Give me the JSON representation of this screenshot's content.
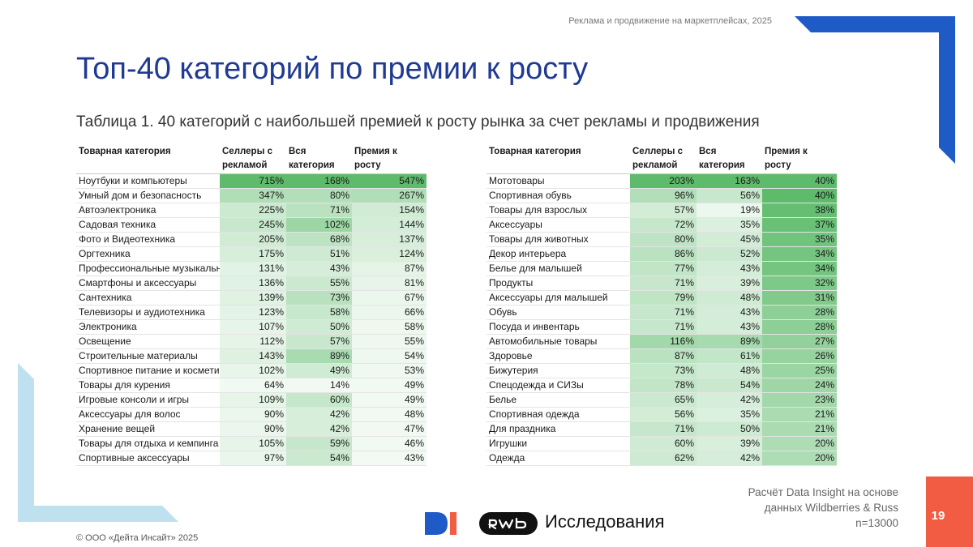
{
  "header_note": "Реклама и продвижение на маркетплейсах, 2025",
  "title": "Топ-40 категорий по премии к росту",
  "caption": "Таблица 1. 40 категорий с наибольшей премией к росту рынка за счет рекламы и продвижения",
  "columns": [
    "Товарная категория",
    "Селлеры с рекламой",
    "Вся категория",
    "Премия к росту"
  ],
  "table_left": [
    [
      "Ноутбуки и компьютеры",
      "715%",
      "168%",
      "547%"
    ],
    [
      "Умный дом и безопасность",
      "347%",
      "80%",
      "267%"
    ],
    [
      "Автоэлектроника",
      "225%",
      "71%",
      "154%"
    ],
    [
      "Садовая техника",
      "245%",
      "102%",
      "144%"
    ],
    [
      "Фото и Видеотехника",
      "205%",
      "68%",
      "137%"
    ],
    [
      "Оргтехника",
      "175%",
      "51%",
      "124%"
    ],
    [
      "Профессиональные музыкальн",
      "131%",
      "43%",
      "87%"
    ],
    [
      "Смартфоны и аксессуары",
      "136%",
      "55%",
      "81%"
    ],
    [
      "Сантехника",
      "139%",
      "73%",
      "67%"
    ],
    [
      "Телевизоры и аудиотехника",
      "123%",
      "58%",
      "66%"
    ],
    [
      "Электроника",
      "107%",
      "50%",
      "58%"
    ],
    [
      "Освещение",
      "112%",
      "57%",
      "55%"
    ],
    [
      "Строительные материалы",
      "143%",
      "89%",
      "54%"
    ],
    [
      "Спортивное питание и космети",
      "102%",
      "49%",
      "53%"
    ],
    [
      "Товары для курения",
      "64%",
      "14%",
      "49%"
    ],
    [
      "Игровые консоли и игры",
      "109%",
      "60%",
      "49%"
    ],
    [
      "Аксессуары для волос",
      "90%",
      "42%",
      "48%"
    ],
    [
      "Хранение вещей",
      "90%",
      "42%",
      "47%"
    ],
    [
      "Товары для отдыха и кемпинга",
      "105%",
      "59%",
      "46%"
    ],
    [
      "Спортивные аксессуары",
      "97%",
      "54%",
      "43%"
    ]
  ],
  "table_right": [
    [
      "Мототовары",
      "203%",
      "163%",
      "40%"
    ],
    [
      "Спортивная обувь",
      "96%",
      "56%",
      "40%"
    ],
    [
      "Товары для взрослых",
      "57%",
      "19%",
      "38%"
    ],
    [
      "Аксессуары",
      "72%",
      "35%",
      "37%"
    ],
    [
      "Товары для животных",
      "80%",
      "45%",
      "35%"
    ],
    [
      "Декор интерьера",
      "86%",
      "52%",
      "34%"
    ],
    [
      "Белье для малышей",
      "77%",
      "43%",
      "34%"
    ],
    [
      "Продукты",
      "71%",
      "39%",
      "32%"
    ],
    [
      "Аксессуары для малышей",
      "79%",
      "48%",
      "31%"
    ],
    [
      "Обувь",
      "71%",
      "43%",
      "28%"
    ],
    [
      "Посуда и инвентарь",
      "71%",
      "43%",
      "28%"
    ],
    [
      "Автомобильные товары",
      "116%",
      "89%",
      "27%"
    ],
    [
      "Здоровье",
      "87%",
      "61%",
      "26%"
    ],
    [
      "Бижутерия",
      "73%",
      "48%",
      "25%"
    ],
    [
      "Спецодежда и СИЗы",
      "78%",
      "54%",
      "24%"
    ],
    [
      "Белье",
      "65%",
      "42%",
      "23%"
    ],
    [
      "Спортивная одежда",
      "56%",
      "35%",
      "21%"
    ],
    [
      "Для праздника",
      "71%",
      "50%",
      "21%"
    ],
    [
      "Игрушки",
      "60%",
      "39%",
      "20%"
    ],
    [
      "Одежда",
      "62%",
      "42%",
      "20%"
    ]
  ],
  "source_lines": [
    "Расчёт Data Insight на основе",
    "данных Wildberries & Russ",
    "n=13000"
  ],
  "page_number": "19",
  "copyright": "© ООО «Дейта Инсайт» 2025",
  "logo_research_label": "Исследования",
  "colors": {
    "title": "#1f3a93",
    "heat_green_max": "#5dbb6b",
    "heat_white": "#ffffff",
    "accent_blue": "#1f5bc6",
    "accent_light_blue": "#bfe0ef",
    "page_box": "#f25c42"
  }
}
